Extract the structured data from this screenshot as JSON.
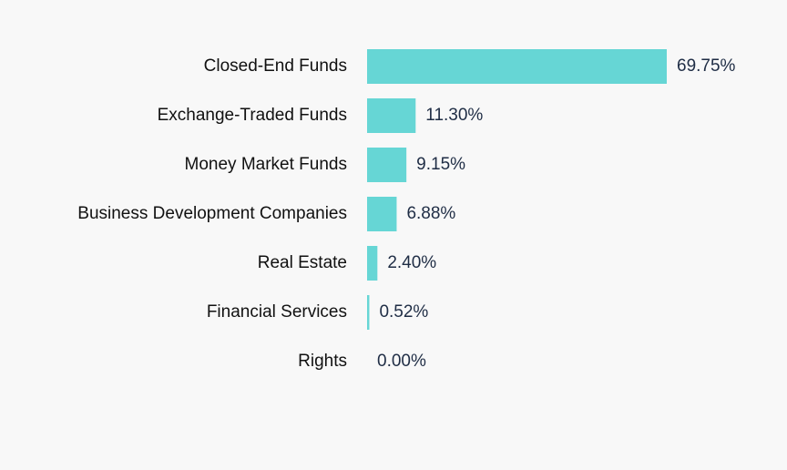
{
  "chart_data": {
    "type": "bar",
    "orientation": "horizontal",
    "categories": [
      "Closed-End Funds",
      "Exchange-Traded Funds",
      "Money Market Funds",
      "Business Development Companies",
      "Real Estate",
      "Financial Services",
      "Rights"
    ],
    "values": [
      69.75,
      11.3,
      9.15,
      6.88,
      2.4,
      0.52,
      0.0
    ],
    "value_labels": [
      "69.75%",
      "11.30%",
      "9.15%",
      "6.88%",
      "2.40%",
      "0.52%",
      "0.00%"
    ],
    "color": "#66d6d5"
  }
}
